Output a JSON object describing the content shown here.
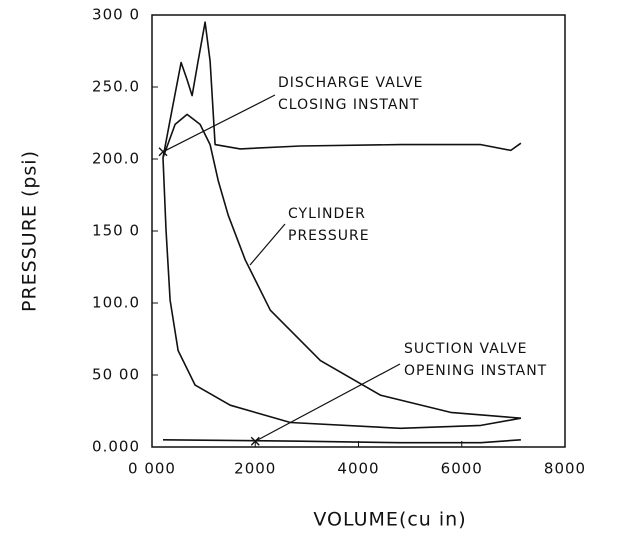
{
  "chart_data": {
    "type": "line",
    "xlabel": "VOLUME(cu in)",
    "ylabel": "PRESSURE (psi)",
    "xlim": [
      0,
      8000
    ],
    "ylim": [
      0,
      300
    ],
    "xticks": [
      {
        "value": 0,
        "label": "0 000"
      },
      2000,
      4000,
      6000,
      8000
    ],
    "yticks": [
      {
        "value": 0,
        "label": "0.000"
      },
      {
        "value": 50,
        "label": "50 00"
      },
      {
        "value": 100,
        "label": "100.0"
      },
      {
        "value": 150,
        "label": "150 0"
      },
      {
        "value": 200,
        "label": "200.0"
      },
      {
        "value": 250,
        "label": "250.0"
      },
      {
        "value": 300,
        "label": "300 0"
      }
    ],
    "color": "#111111",
    "series": [
      {
        "x": [
          214,
          388,
          563,
          680,
          777,
          893,
          1029,
          1126,
          1223,
          1709,
          2874,
          4816,
          6369,
          6951,
          7146
        ],
        "values": [
          201,
          234,
          267,
          255,
          244,
          268,
          295,
          268,
          210,
          207,
          209,
          210,
          210,
          206,
          211
        ]
      },
      {
        "x": [
          214,
          447,
          680,
          932,
          1126
        ],
        "values": [
          201,
          224,
          231,
          224,
          210
        ]
      },
      {
        "x": [
          1126,
          1282,
          1476,
          1806,
          2291,
          3262,
          4427,
          5786,
          7146
        ],
        "values": [
          210,
          185,
          161,
          130,
          95,
          60,
          36,
          24,
          20
        ]
      },
      {
        "x": [
          214,
          272,
          350,
          505,
          835,
          1515,
          2680,
          4816,
          6369,
          7146
        ],
        "values": [
          201,
          151,
          102,
          67,
          43,
          29,
          17,
          13,
          15,
          20
        ]
      },
      {
        "x": [
          214,
          2874,
          4816,
          6369,
          7146
        ],
        "values": [
          5,
          4,
          3,
          3,
          5
        ]
      }
    ],
    "markers": [
      {
        "x": 214,
        "y": 205
      },
      {
        "x": 2000,
        "y": 4
      }
    ],
    "annotations": [
      {
        "lines": [
          "DISCHARGE VALVE",
          "CLOSING INSTANT"
        ]
      },
      {
        "lines": [
          "CYLINDER",
          "PRESSURE"
        ]
      },
      {
        "lines": [
          "SUCTION VALVE",
          "OPENING INSTANT"
        ]
      }
    ]
  }
}
